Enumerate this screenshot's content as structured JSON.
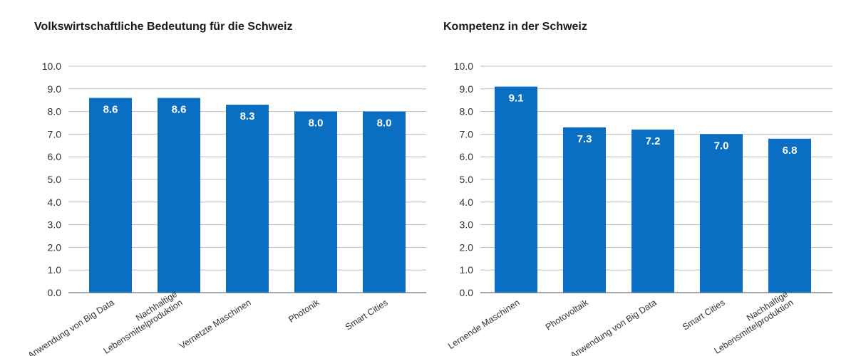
{
  "colors": {
    "bar": "#0a6ec2",
    "grid": "#bdbdbd",
    "axis": "#555555",
    "text": "#333333"
  },
  "chart_data": [
    {
      "type": "bar",
      "title": "Volkswirtschaftliche Bedeutung  für die Schweiz",
      "categories": [
        "Anwendung von Big Data",
        "Nachhaltige\nLebensmittelproduktion",
        "Vernetzte Maschinen",
        "Photonik",
        "Smart Cities"
      ],
      "values": [
        8.6,
        8.6,
        8.3,
        8.0,
        8.0
      ],
      "value_labels": [
        "8.6",
        "8.6",
        "8.3",
        "8.0",
        "8.0"
      ],
      "ylim": [
        0,
        10
      ],
      "yticks": [
        "0.0",
        "1.0",
        "2.0",
        "3.0",
        "4.0",
        "5.0",
        "6.0",
        "7.0",
        "8.0",
        "9.0",
        "10.0"
      ],
      "grid": true,
      "xlabel": "",
      "ylabel": ""
    },
    {
      "type": "bar",
      "title": "Kompetenz in der Schweiz",
      "categories": [
        "Lernende Maschinen",
        "Photovoltaik",
        "Anwendung von Big Data",
        "Smart Cities",
        "Nachhaltige\nLebensmittelproduktion"
      ],
      "values": [
        9.1,
        7.3,
        7.2,
        7.0,
        6.8
      ],
      "value_labels": [
        "9.1",
        "7.3",
        "7.2",
        "7.0",
        "6.8"
      ],
      "ylim": [
        0,
        10
      ],
      "yticks": [
        "0.0",
        "1.0",
        "2.0",
        "3.0",
        "4.0",
        "5.0",
        "6.0",
        "7.0",
        "8.0",
        "9.0",
        "10.0"
      ],
      "grid": true,
      "xlabel": "",
      "ylabel": ""
    }
  ]
}
